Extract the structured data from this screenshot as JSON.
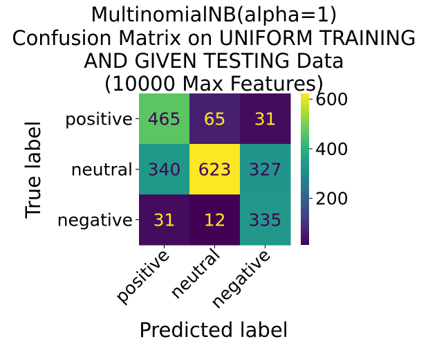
{
  "chart_data": {
    "type": "heatmap",
    "title_lines": [
      "MultinomialNB(alpha=1)",
      "Confusion Matrix on UNIFORM TRAINING",
      "AND GIVEN TESTING Data",
      "(10000 Max Features)"
    ],
    "xlabel": "Predicted label",
    "ylabel": "True label",
    "x_categories": [
      "positive",
      "neutral",
      "negative"
    ],
    "y_categories": [
      "positive",
      "neutral",
      "negative"
    ],
    "matrix": [
      [
        465,
        65,
        31
      ],
      [
        340,
        623,
        327
      ],
      [
        31,
        12,
        335
      ]
    ],
    "colormap": "viridis",
    "colorbar": {
      "ticks": [
        200,
        400,
        600
      ],
      "range": [
        12,
        623
      ]
    },
    "text_colors": {
      "dark": "#440154",
      "light": "#fde725"
    }
  }
}
